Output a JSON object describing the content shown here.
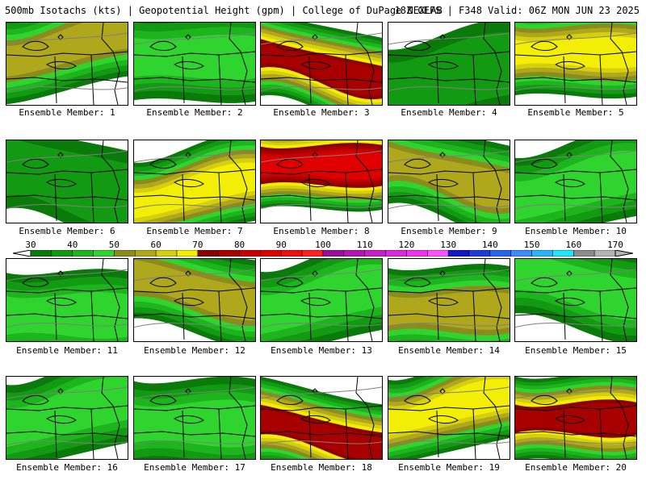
{
  "header": {
    "left": "500mb Isotachs (kts) | Geopotential Height (gpm) | College of DuPage NEXLAB",
    "right": "18Z GEFS | F348 Valid: 06Z MON JUN 23 2025"
  },
  "colors": {
    "map_background": "#ffffff",
    "state_lines": "#000000",
    "height_contours": "#7f7f7f"
  },
  "panels": [
    {
      "label": "Ensemble Member: 1",
      "peak_kts": 60
    },
    {
      "label": "Ensemble Member: 2",
      "peak_kts": 50
    },
    {
      "label": "Ensemble Member: 3",
      "peak_kts": 80
    },
    {
      "label": "Ensemble Member: 4",
      "peak_kts": 40
    },
    {
      "label": "Ensemble Member: 5",
      "peak_kts": 70
    },
    {
      "label": "Ensemble Member: 6",
      "peak_kts": 40
    },
    {
      "label": "Ensemble Member: 7",
      "peak_kts": 70
    },
    {
      "label": "Ensemble Member: 8",
      "peak_kts": 90
    },
    {
      "label": "Ensemble Member: 9",
      "peak_kts": 60
    },
    {
      "label": "Ensemble Member: 10",
      "peak_kts": 50
    },
    {
      "label": "Ensemble Member: 11",
      "peak_kts": 50
    },
    {
      "label": "Ensemble Member: 12",
      "peak_kts": 60
    },
    {
      "label": "Ensemble Member: 13",
      "peak_kts": 50
    },
    {
      "label": "Ensemble Member: 14",
      "peak_kts": 60
    },
    {
      "label": "Ensemble Member: 15",
      "peak_kts": 50
    },
    {
      "label": "Ensemble Member: 16",
      "peak_kts": 50
    },
    {
      "label": "Ensemble Member: 17",
      "peak_kts": 50
    },
    {
      "label": "Ensemble Member: 18",
      "peak_kts": 80
    },
    {
      "label": "Ensemble Member: 19",
      "peak_kts": 70
    },
    {
      "label": "Ensemble Member: 20",
      "peak_kts": 80
    }
  ],
  "legend": {
    "tick_labels": [
      "30",
      "40",
      "50",
      "60",
      "70",
      "80",
      "90",
      "100",
      "110",
      "120",
      "130",
      "140",
      "150",
      "160",
      "170"
    ],
    "bins": [
      {
        "from": 30,
        "to": 35,
        "color": "#0a7a0a"
      },
      {
        "from": 35,
        "to": 40,
        "color": "#139a13"
      },
      {
        "from": 40,
        "to": 45,
        "color": "#1eb41e"
      },
      {
        "from": 45,
        "to": 50,
        "color": "#2fd42f"
      },
      {
        "from": 50,
        "to": 55,
        "color": "#8c8c1e"
      },
      {
        "from": 55,
        "to": 60,
        "color": "#b0a81c"
      },
      {
        "from": 60,
        "to": 65,
        "color": "#d6cf10"
      },
      {
        "from": 65,
        "to": 70,
        "color": "#f2ee05"
      },
      {
        "from": 70,
        "to": 75,
        "color": "#8c0000"
      },
      {
        "from": 75,
        "to": 80,
        "color": "#a80000"
      },
      {
        "from": 80,
        "to": 85,
        "color": "#c80000"
      },
      {
        "from": 85,
        "to": 90,
        "color": "#e00000"
      },
      {
        "from": 90,
        "to": 95,
        "color": "#ee1010"
      },
      {
        "from": 95,
        "to": 100,
        "color": "#ff2020"
      },
      {
        "from": 100,
        "to": 105,
        "color": "#9c0e9c"
      },
      {
        "from": 105,
        "to": 110,
        "color": "#b414b4"
      },
      {
        "from": 110,
        "to": 115,
        "color": "#c81ec8"
      },
      {
        "from": 115,
        "to": 120,
        "color": "#dc28dc"
      },
      {
        "from": 120,
        "to": 125,
        "color": "#f032f0"
      },
      {
        "from": 125,
        "to": 130,
        "color": "#ff50ff"
      },
      {
        "from": 130,
        "to": 135,
        "color": "#1414c8"
      },
      {
        "from": 135,
        "to": 140,
        "color": "#1e3cdc"
      },
      {
        "from": 140,
        "to": 145,
        "color": "#2864f0"
      },
      {
        "from": 145,
        "to": 150,
        "color": "#3c8cff"
      },
      {
        "from": 150,
        "to": 155,
        "color": "#28b4ff"
      },
      {
        "from": 155,
        "to": 160,
        "color": "#1ee6ff"
      },
      {
        "from": 160,
        "to": 165,
        "color": "#8c8c8c"
      },
      {
        "from": 165,
        "to": 170,
        "color": "#b4b4b4"
      }
    ]
  }
}
